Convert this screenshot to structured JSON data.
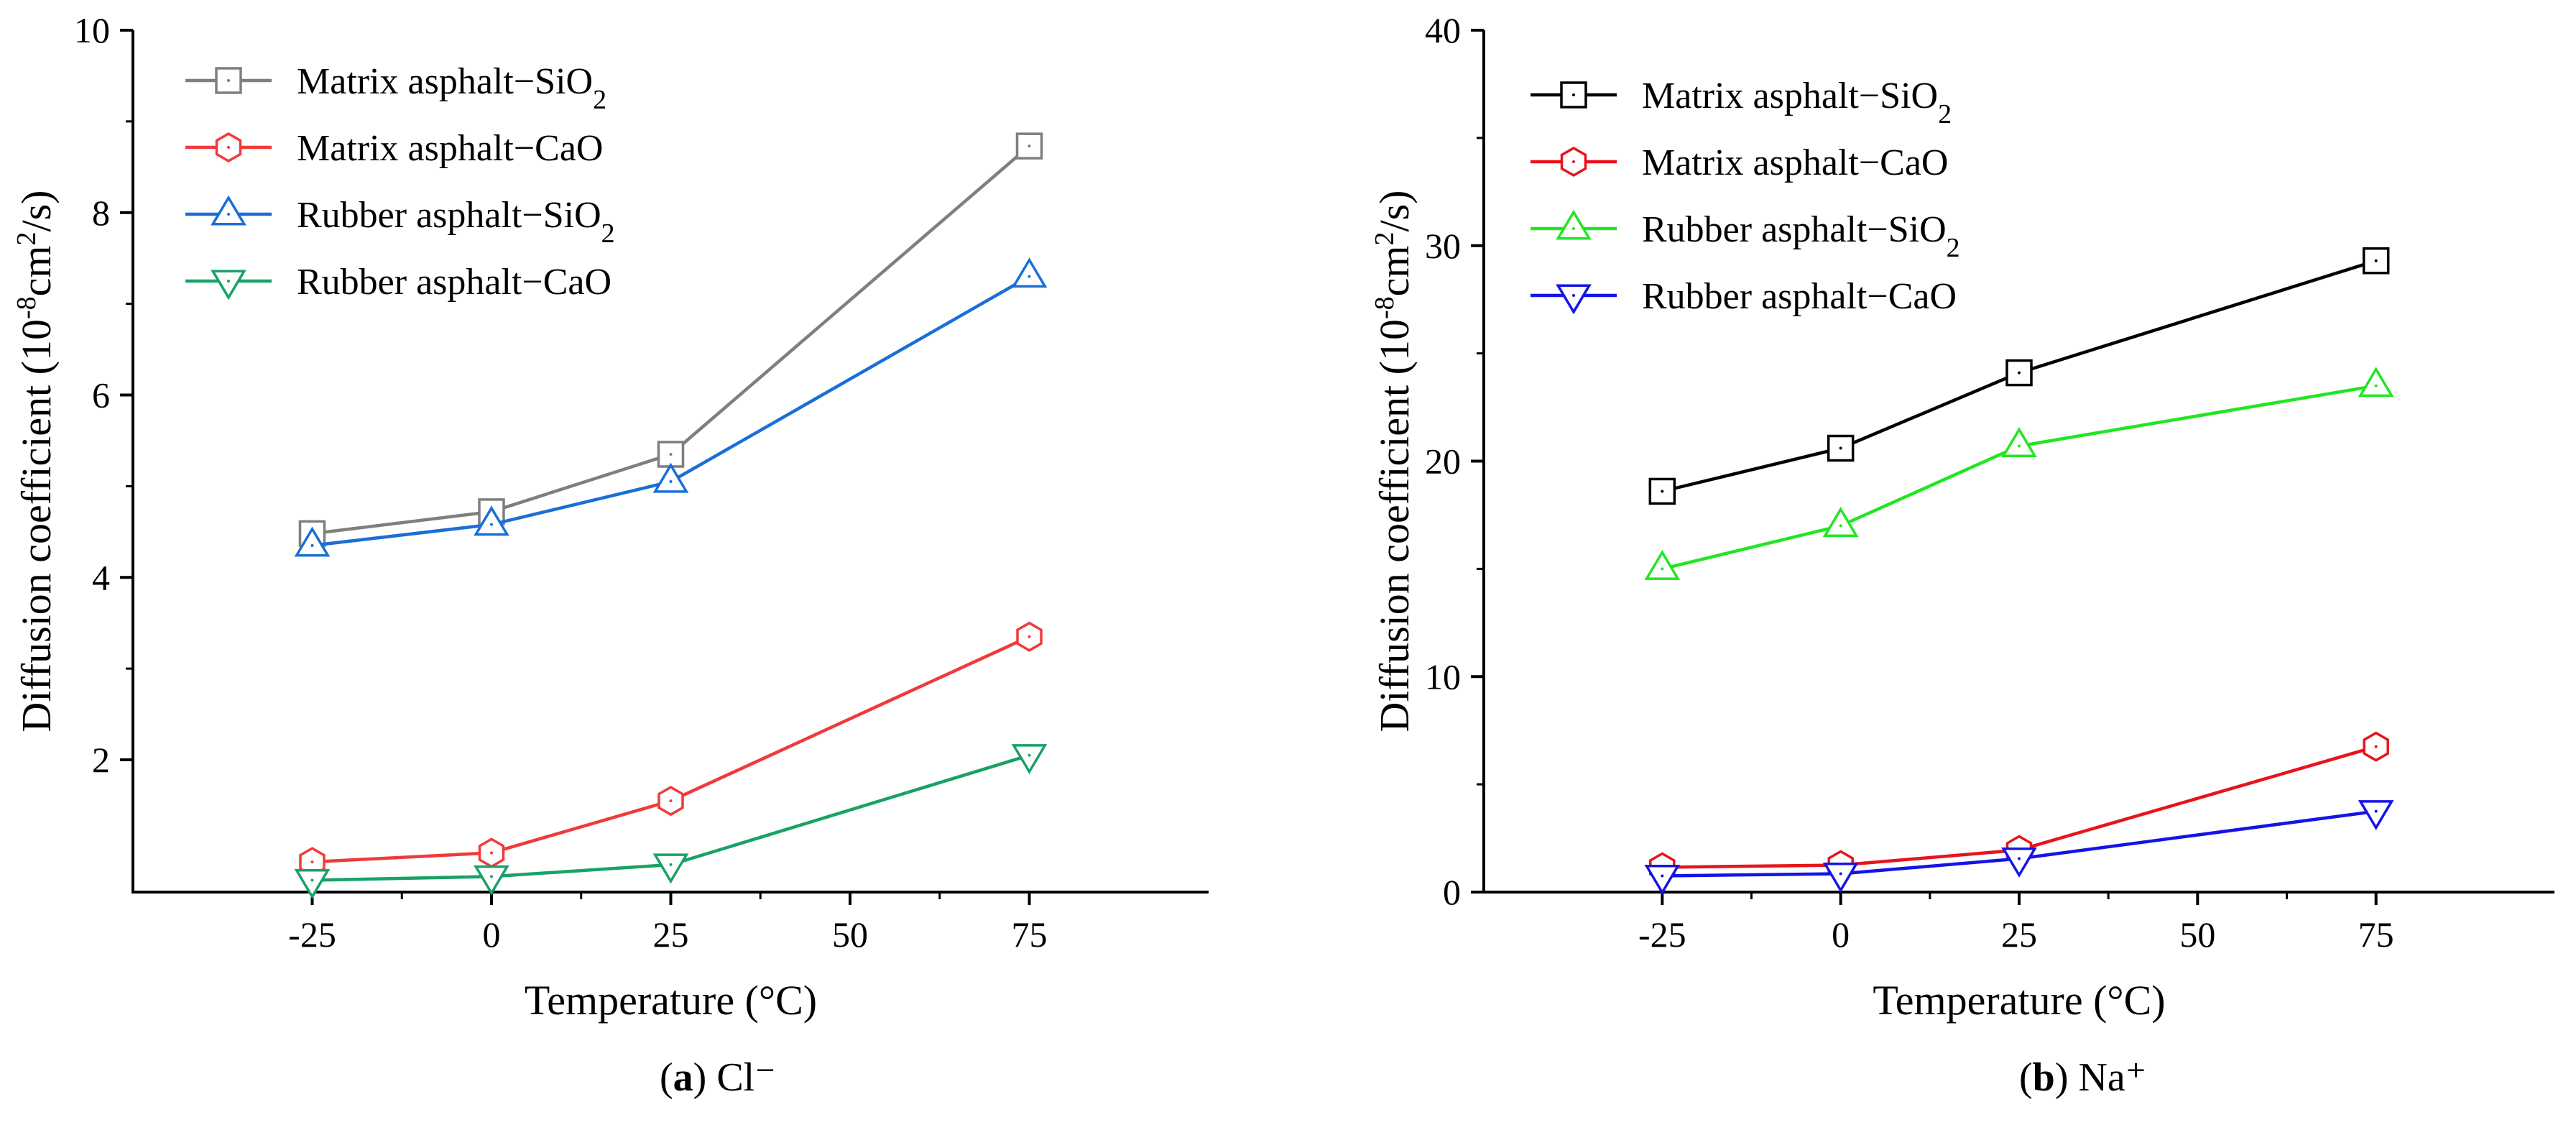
{
  "chart_data": [
    {
      "type": "line",
      "panel": "(a)",
      "caption_label": "(a)",
      "caption_ion": "Cl⁻",
      "xlabel": "Temperature (°C)",
      "ylabel_prefix": "Diffusion coefficient (10",
      "ylabel_exp1": "-8",
      "ylabel_mid": "cm",
      "ylabel_exp2": "2",
      "ylabel_suffix": "/s)",
      "x": [
        -25,
        0,
        25,
        75
      ],
      "xlim": [
        -50,
        100
      ],
      "ylim": [
        0.55,
        10
      ],
      "xticks": [
        -25,
        0,
        25,
        50,
        75
      ],
      "yticks": [
        2,
        4,
        6,
        8,
        10
      ],
      "legend_position": "top-left",
      "series": [
        {
          "name_prefix": "Matrix asphalt−SiO",
          "name_sub": "2",
          "marker": "square",
          "color": "#7f7f7f",
          "values": [
            4.48,
            4.72,
            5.35,
            8.73
          ]
        },
        {
          "name_prefix": "Matrix asphalt−CaO",
          "name_sub": "",
          "marker": "hexagon",
          "color": "#f03a3a",
          "values": [
            0.88,
            0.98,
            1.55,
            3.35
          ]
        },
        {
          "name_prefix": "Rubber asphalt−SiO",
          "name_sub": "2",
          "marker": "triangle-up",
          "color": "#1a6fd6",
          "values": [
            4.35,
            4.58,
            5.05,
            7.3
          ]
        },
        {
          "name_prefix": "Rubber asphalt−CaO",
          "name_sub": "",
          "marker": "triangle-down",
          "color": "#18a266",
          "values": [
            0.68,
            0.72,
            0.85,
            2.05
          ]
        }
      ]
    },
    {
      "type": "line",
      "panel": "(b)",
      "caption_label": "(b)",
      "caption_ion": "Na⁺",
      "xlabel": "Temperature (°C)",
      "ylabel_prefix": "Diffusion coefficient (10",
      "ylabel_exp1": "-8",
      "ylabel_mid": "cm",
      "ylabel_exp2": "2",
      "ylabel_suffix": "/s)",
      "x": [
        -25,
        0,
        25,
        75
      ],
      "xlim": [
        -50,
        100
      ],
      "ylim": [
        0,
        40
      ],
      "xticks": [
        -25,
        0,
        25,
        50,
        75
      ],
      "yticks": [
        0,
        10,
        20,
        30,
        40
      ],
      "legend_position": "top-left",
      "series": [
        {
          "name_prefix": "Matrix asphalt−SiO",
          "name_sub": "2",
          "marker": "square",
          "color": "#000000",
          "values": [
            18.6,
            20.6,
            24.1,
            29.3
          ]
        },
        {
          "name_prefix": "Matrix asphalt−CaO",
          "name_sub": "",
          "marker": "hexagon",
          "color": "#e8141b",
          "values": [
            1.15,
            1.25,
            1.95,
            6.75
          ]
        },
        {
          "name_prefix": "Rubber asphalt−SiO",
          "name_sub": "2",
          "marker": "triangle-up",
          "color": "#22e622",
          "values": [
            15.0,
            17.0,
            20.7,
            23.5
          ]
        },
        {
          "name_prefix": "Rubber asphalt−CaO",
          "name_sub": "",
          "marker": "triangle-down",
          "color": "#1414e6",
          "values": [
            0.75,
            0.85,
            1.55,
            3.75
          ]
        }
      ]
    }
  ]
}
